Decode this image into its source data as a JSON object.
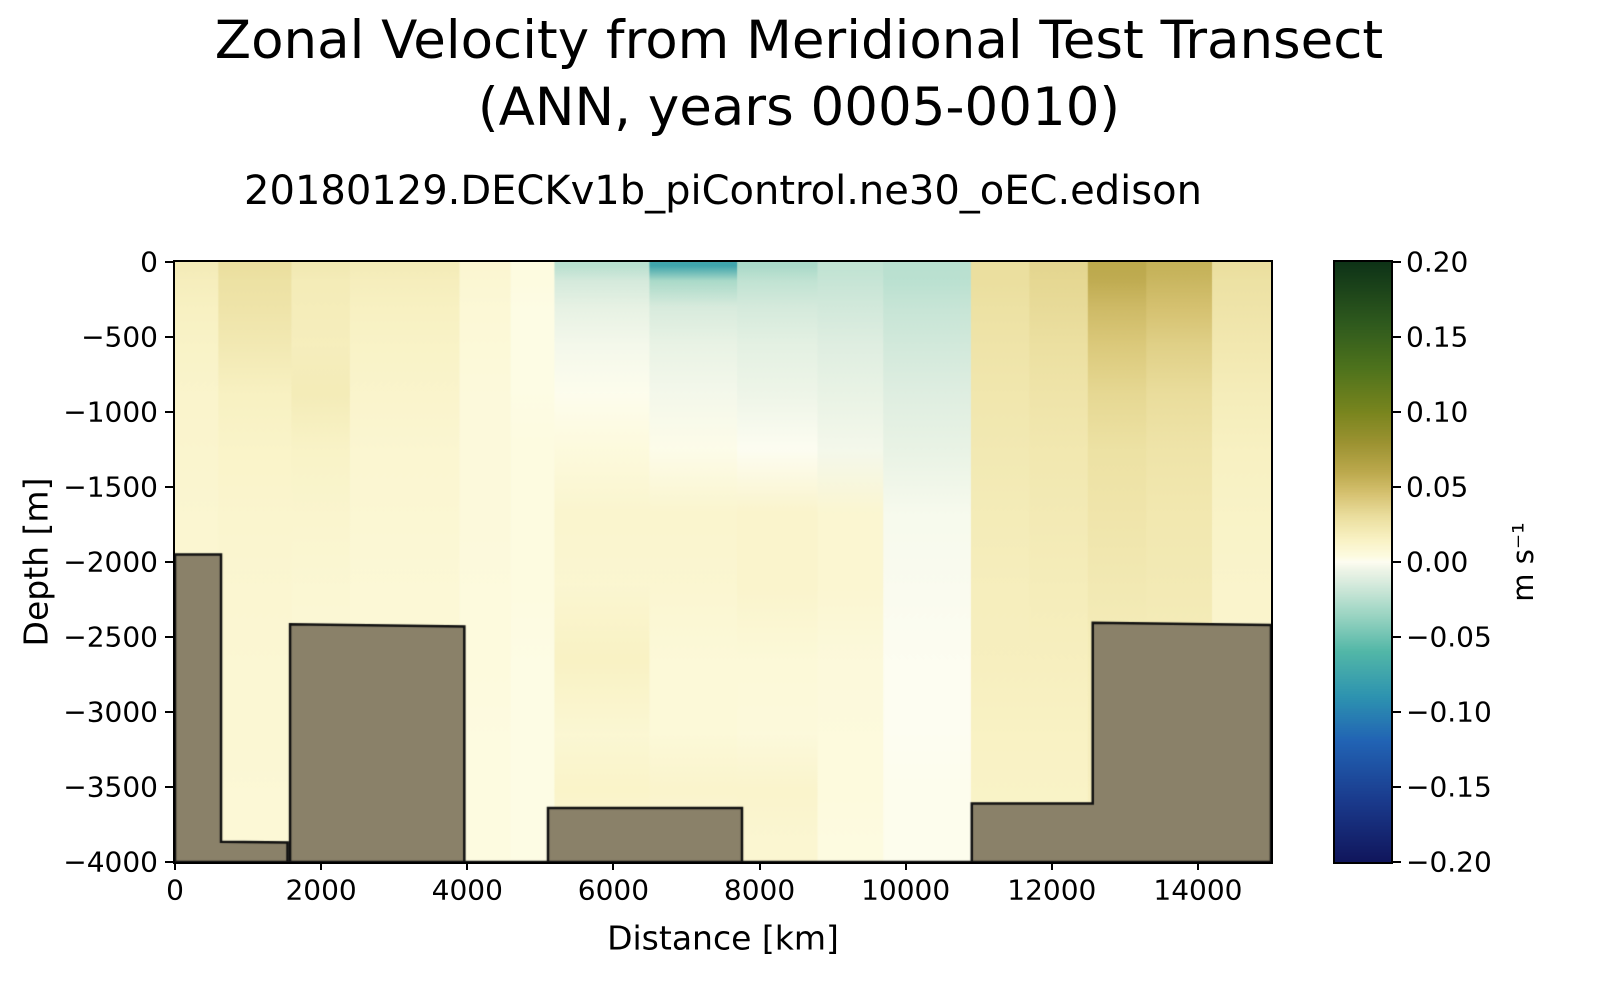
{
  "title": {
    "line1": "Zonal Velocity from Meridional Test Transect",
    "line2": "(ANN, years 0005-0010)"
  },
  "subtitle": "20180129.DECKv1b_piControl.ne30_oEC.edison",
  "chart_data": {
    "type": "heatmap",
    "title": "Zonal Velocity from Meridional Test Transect (ANN, years 0005-0010)",
    "subtitle": "20180129.DECKv1b_piControl.ne30_oEC.edison",
    "xlabel": "Distance [km]",
    "ylabel": "Depth [m]",
    "xlim": [
      0,
      15000
    ],
    "ylim": [
      -4000,
      0
    ],
    "xtick_values": [
      0,
      2000,
      4000,
      6000,
      8000,
      10000,
      12000,
      14000
    ],
    "xtick_labels": [
      "0",
      "2000",
      "4000",
      "6000",
      "8000",
      "10000",
      "12000",
      "14000"
    ],
    "ytick_values": [
      0,
      -500,
      -1000,
      -1500,
      -2000,
      -2500,
      -3000,
      -3500,
      -4000
    ],
    "ytick_labels": [
      "0",
      "−500",
      "−1000",
      "−1500",
      "−2000",
      "−2500",
      "−3000",
      "−3500",
      "−4000"
    ],
    "colorbar": {
      "label": "m s⁻¹",
      "vmin": -0.2,
      "vmax": 0.2,
      "tick_values": [
        0.2,
        0.15,
        0.1,
        0.05,
        0.0,
        -0.05,
        -0.1,
        -0.15,
        -0.2
      ],
      "tick_labels": [
        "0.20",
        "0.15",
        "0.10",
        "0.05",
        "0.00",
        "−0.05",
        "−0.10",
        "−0.15",
        "−0.20"
      ],
      "stops": [
        [
          -0.2,
          "#10165c"
        ],
        [
          -0.16,
          "#1a3a8c"
        ],
        [
          -0.12,
          "#2163b4"
        ],
        [
          -0.09,
          "#2d93b0"
        ],
        [
          -0.06,
          "#52b7a7"
        ],
        [
          -0.035,
          "#9cd5c3"
        ],
        [
          -0.015,
          "#d5eadc"
        ],
        [
          -0.004,
          "#f1f6e9"
        ],
        [
          0.0,
          "#fdfdf1"
        ],
        [
          0.004,
          "#fdfbe0"
        ],
        [
          0.015,
          "#f9f2c4"
        ],
        [
          0.03,
          "#ebdf9f"
        ],
        [
          0.045,
          "#d7c372"
        ],
        [
          0.06,
          "#bca94d"
        ],
        [
          0.08,
          "#9b9231"
        ],
        [
          0.1,
          "#79851e"
        ],
        [
          0.13,
          "#4d721c"
        ],
        [
          0.16,
          "#2e591d"
        ],
        [
          0.2,
          "#0e3317"
        ]
      ]
    },
    "grid": {
      "x_edges_km": [
        0,
        600,
        1600,
        2400,
        3900,
        4600,
        5200,
        6500,
        7700,
        8800,
        9700,
        10900,
        11700,
        12500,
        13300,
        14200,
        15000
      ],
      "y_edges_m": [
        0,
        -50,
        -200,
        -400,
        -700,
        -1050,
        -1450,
        -1900,
        -2400,
        -2900,
        -3400,
        -3650,
        -4000
      ],
      "values_ms": [
        [
          0.02,
          0.03,
          0.022,
          0.02,
          0.01,
          0.004,
          -0.025,
          -0.075,
          -0.03,
          -0.022,
          -0.025,
          0.03,
          0.035,
          0.06,
          0.055,
          0.03
        ],
        [
          0.018,
          0.028,
          0.02,
          0.018,
          0.009,
          0.004,
          -0.015,
          -0.03,
          -0.022,
          -0.02,
          -0.024,
          0.03,
          0.034,
          0.058,
          0.052,
          0.028
        ],
        [
          0.016,
          0.026,
          0.019,
          0.016,
          0.008,
          0.003,
          -0.008,
          -0.014,
          -0.015,
          -0.016,
          -0.02,
          0.028,
          0.032,
          0.05,
          0.046,
          0.026
        ],
        [
          0.014,
          0.022,
          0.018,
          0.014,
          0.007,
          0.003,
          -0.003,
          -0.007,
          -0.009,
          -0.011,
          -0.016,
          0.026,
          0.029,
          0.042,
          0.038,
          0.023
        ],
        [
          0.012,
          0.016,
          0.02,
          0.012,
          0.006,
          0.003,
          0.001,
          -0.003,
          -0.005,
          -0.007,
          -0.011,
          0.024,
          0.026,
          0.034,
          0.031,
          0.019
        ],
        [
          0.011,
          0.013,
          0.014,
          0.01,
          0.006,
          0.004,
          0.005,
          0.002,
          0.0,
          -0.003,
          -0.007,
          0.022,
          0.023,
          0.028,
          0.026,
          0.016
        ],
        [
          0.01,
          0.011,
          0.011,
          0.009,
          0.006,
          0.004,
          0.011,
          0.011,
          0.012,
          0.01,
          -0.002,
          0.02,
          0.021,
          0.025,
          0.023,
          0.014
        ],
        [
          0.01,
          0.01,
          0.009,
          0.008,
          0.005,
          0.004,
          0.01,
          0.01,
          0.012,
          0.01,
          -0.001,
          0.018,
          0.019,
          0.022,
          0.021,
          0.012
        ],
        [
          0.009,
          0.009,
          0.008,
          0.008,
          0.005,
          0.003,
          0.015,
          0.007,
          0.007,
          0.006,
          0.0,
          0.017,
          0.017,
          0.019,
          0.019,
          0.011
        ],
        [
          0.009,
          0.009,
          0.008,
          0.007,
          0.004,
          0.003,
          0.009,
          0.007,
          0.006,
          0.005,
          0.0,
          0.015,
          0.015,
          0.018,
          0.018,
          0.01
        ],
        [
          0.008,
          0.008,
          0.008,
          0.007,
          0.004,
          0.003,
          0.013,
          0.012,
          0.012,
          0.005,
          0.001,
          0.014,
          0.014,
          0.017,
          0.017,
          0.01
        ],
        [
          0.008,
          0.008,
          0.007,
          0.007,
          0.004,
          0.003,
          0.008,
          0.008,
          0.01,
          0.004,
          0.001,
          0.013,
          0.013,
          0.016,
          0.016,
          0.009
        ]
      ]
    },
    "bathymetry": {
      "fill_color": "#8a8169",
      "edge_color": "#111111",
      "profile_km_m": [
        [
          0,
          -1950
        ],
        [
          630,
          -1950
        ],
        [
          630,
          -3865
        ],
        [
          1540,
          -3870
        ],
        [
          1540,
          -4000
        ],
        [
          1575,
          -4000
        ],
        [
          1575,
          -2415
        ],
        [
          3960,
          -2430
        ],
        [
          3960,
          -4000
        ],
        [
          5105,
          -4000
        ],
        [
          5105,
          -3640
        ],
        [
          7760,
          -3640
        ],
        [
          7760,
          -4000
        ],
        [
          10905,
          -4000
        ],
        [
          10905,
          -3610
        ],
        [
          12560,
          -3610
        ],
        [
          12560,
          -2405
        ],
        [
          15000,
          -2420
        ]
      ]
    }
  }
}
